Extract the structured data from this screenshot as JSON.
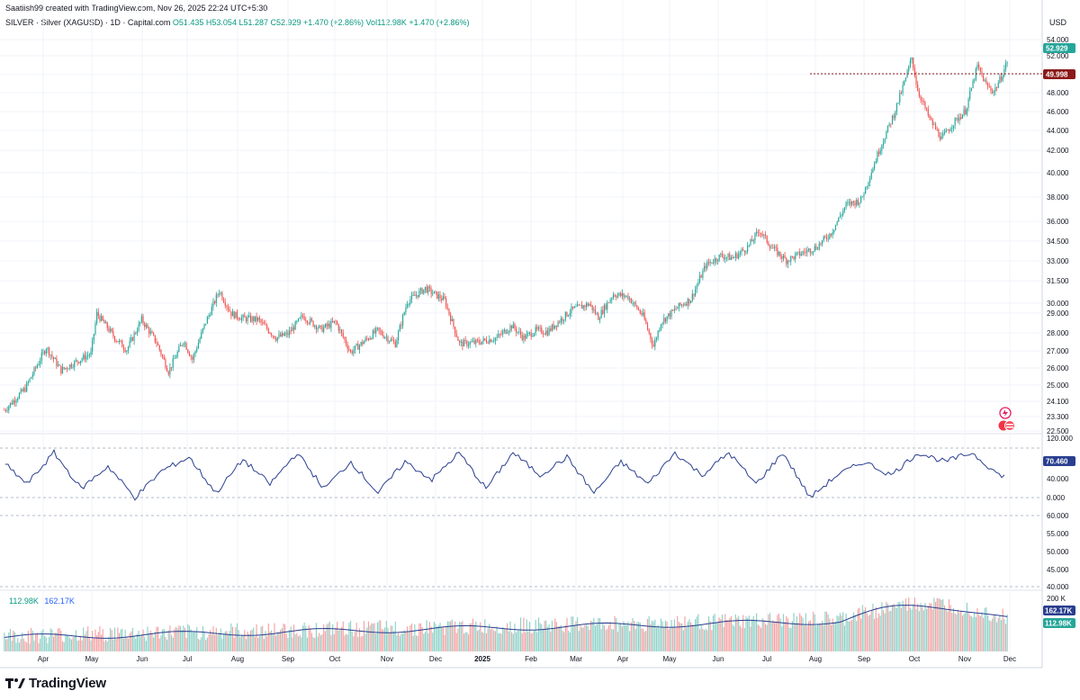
{
  "header": {
    "created_by": "Saatiish99 created with TradingView.com, Nov 26, 2025 22:24 UTC+5:30"
  },
  "legend": {
    "symbol": "SILVER · Silver (XAGUSD) · 1D · Capital.com",
    "ohlc": "O51.435  H53.054  L51.287  C52.929  +1.470 (+2.86%)  Vol112.98K  +1.470 (+2.86%)"
  },
  "volume_legend": {
    "vol": "112.98K",
    "vol_ma": "162.17K"
  },
  "brand": {
    "name": "TradingView"
  },
  "colors": {
    "up": "#26a69a",
    "down": "#ef5350",
    "osc": "#2a3f8f",
    "vol_ma": "#2a3f8f",
    "axis_text": "#131722",
    "grid": "#f0f3fa"
  },
  "icons": [
    "flash-icon",
    "flag-icon",
    "tradingview-logo-icon"
  ],
  "chart_data": {
    "type": "candlestick",
    "title": "SILVER · Silver (XAGUSD) · 1D · Capital.com",
    "ylabel": "USD",
    "price_ylim": [
      22.5,
      55
    ],
    "price_ticks": [
      "54.000",
      "52.000",
      "50.000",
      "48.000",
      "46.000",
      "44.000",
      "42.000",
      "40.000",
      "38.000",
      "36.000",
      "34.500",
      "33.000",
      "31.500",
      "30.000",
      "29.000",
      "28.000",
      "27.000",
      "26.000",
      "25.000",
      "24.100",
      "23.300",
      "22.500"
    ],
    "last_price_label": "52.929",
    "line_price_label": "49.998",
    "osc_ticks": [
      "120.000",
      "80.000",
      "40.000",
      "0.000"
    ],
    "osc_last_label": "70.460",
    "lower_ticks": [
      "60.000",
      "55.000",
      "50.000",
      "45.000",
      "40.000"
    ],
    "volume_ticks": [
      "200 K"
    ],
    "volume_labels": [
      "162.17K",
      "112.98K"
    ],
    "x_labels": [
      "Apr",
      "May",
      "Jun",
      "Jul",
      "Aug",
      "Sep",
      "Oct",
      "Nov",
      "Dec",
      "2025",
      "Feb",
      "Mar",
      "Apr",
      "May",
      "Jun",
      "Jul",
      "Aug",
      "Sep",
      "Oct",
      "Nov",
      "Dec"
    ],
    "price_path": [
      [
        0,
        24.0
      ],
      [
        14,
        25.8
      ],
      [
        28,
        29.2
      ],
      [
        38,
        27.3
      ],
      [
        58,
        28.7
      ],
      [
        62,
        32.0
      ],
      [
        74,
        30.0
      ],
      [
        82,
        29.0
      ],
      [
        92,
        31.5
      ],
      [
        102,
        29.6
      ],
      [
        110,
        27.2
      ],
      [
        120,
        29.8
      ],
      [
        126,
        28.2
      ],
      [
        134,
        31.0
      ],
      [
        144,
        33.9
      ],
      [
        152,
        32.0
      ],
      [
        160,
        31.6
      ],
      [
        170,
        31.5
      ],
      [
        182,
        30.0
      ],
      [
        190,
        30.3
      ],
      [
        200,
        31.8
      ],
      [
        212,
        30.7
      ],
      [
        222,
        31.3
      ],
      [
        232,
        28.8
      ],
      [
        240,
        29.6
      ],
      [
        250,
        30.6
      ],
      [
        262,
        29.5
      ],
      [
        270,
        33.0
      ],
      [
        282,
        34.1
      ],
      [
        295,
        33.1
      ],
      [
        305,
        29.5
      ],
      [
        316,
        29.6
      ],
      [
        330,
        30.0
      ],
      [
        340,
        31.0
      ],
      [
        348,
        30.0
      ],
      [
        356,
        30.6
      ],
      [
        364,
        30.5
      ],
      [
        370,
        31.2
      ],
      [
        380,
        32.3
      ],
      [
        392,
        32.8
      ],
      [
        398,
        31.7
      ],
      [
        408,
        33.6
      ],
      [
        418,
        33.4
      ],
      [
        428,
        31.8
      ],
      [
        435,
        29.3
      ],
      [
        440,
        31.3
      ],
      [
        452,
        32.6
      ],
      [
        460,
        33.2
      ],
      [
        470,
        36.0
      ],
      [
        480,
        36.8
      ],
      [
        488,
        36.6
      ],
      [
        498,
        37.5
      ],
      [
        506,
        38.9
      ],
      [
        514,
        37.5
      ],
      [
        524,
        36.4
      ],
      [
        534,
        37.0
      ],
      [
        544,
        37.5
      ],
      [
        554,
        38.7
      ],
      [
        564,
        41.0
      ],
      [
        574,
        41.4
      ],
      [
        586,
        45.5
      ],
      [
        596,
        48.5
      ],
      [
        604,
        51.5
      ],
      [
        608,
        53.2
      ],
      [
        612,
        50.5
      ],
      [
        620,
        48.1
      ],
      [
        628,
        46.5
      ],
      [
        636,
        47.8
      ],
      [
        644,
        48.8
      ],
      [
        652,
        52.5
      ],
      [
        658,
        50.9
      ],
      [
        663,
        50.4
      ],
      [
        668,
        51.6
      ],
      [
        672,
        52.9
      ]
    ],
    "osc_path": [
      [
        0,
        95
      ],
      [
        30,
        40
      ],
      [
        60,
        110
      ],
      [
        90,
        30
      ],
      [
        120,
        80
      ],
      [
        150,
        10
      ],
      [
        180,
        70
      ],
      [
        210,
        100
      ],
      [
        240,
        20
      ],
      [
        270,
        95
      ],
      [
        300,
        40
      ],
      [
        330,
        110
      ],
      [
        360,
        30
      ],
      [
        390,
        90
      ],
      [
        420,
        20
      ],
      [
        450,
        90
      ],
      [
        480,
        50
      ],
      [
        510,
        110
      ],
      [
        540,
        30
      ],
      [
        570,
        110
      ],
      [
        600,
        60
      ],
      [
        630,
        100
      ],
      [
        660,
        20
      ],
      [
        690,
        90
      ],
      [
        720,
        40
      ],
      [
        750,
        110
      ],
      [
        780,
        60
      ],
      [
        810,
        110
      ],
      [
        840,
        40
      ],
      [
        870,
        110
      ],
      [
        900,
        10
      ],
      [
        930,
        60
      ],
      [
        960,
        90
      ],
      [
        990,
        60
      ],
      [
        1020,
        110
      ],
      [
        1050,
        90
      ],
      [
        1080,
        110
      ],
      [
        1110,
        60
      ]
    ],
    "volume_range": [
      0,
      200
    ],
    "volume_ma_last": 162.17,
    "volume_last": 112.98
  }
}
